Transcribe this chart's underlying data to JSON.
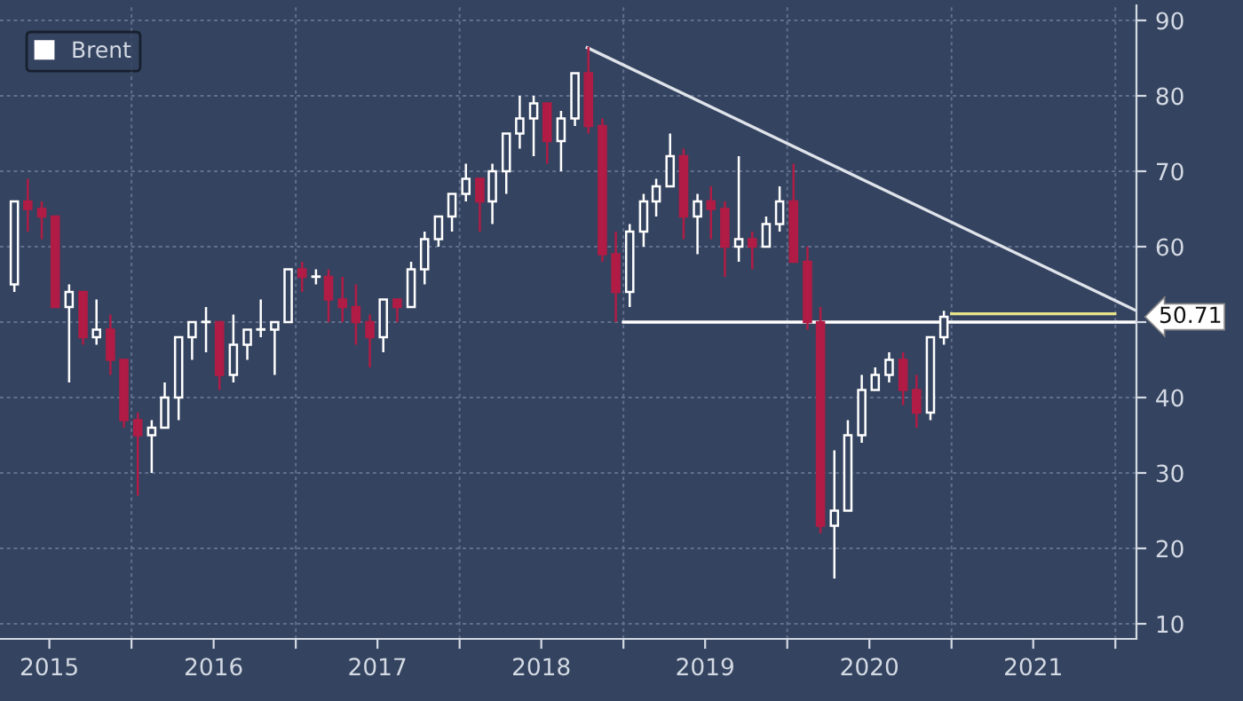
{
  "chart_data": {
    "type": "candlestick",
    "xlim": [
      "2015-03-14",
      "2022-02-17"
    ],
    "xticks": [
      {
        "value": "2015-07-02",
        "label": "2015"
      },
      {
        "value": "2016-01-01",
        "label": null
      },
      {
        "value": "2016-07-02",
        "label": "2016"
      },
      {
        "value": "2017-01-01",
        "label": null
      },
      {
        "value": "2017-07-02",
        "label": "2017"
      },
      {
        "value": "2018-01-01",
        "label": null
      },
      {
        "value": "2018-07-02",
        "label": "2018"
      },
      {
        "value": "2019-01-01",
        "label": null
      },
      {
        "value": "2019-07-02",
        "label": "2019"
      },
      {
        "value": "2020-01-01",
        "label": null
      },
      {
        "value": "2020-07-02",
        "label": "2020"
      },
      {
        "value": "2021-01-01",
        "label": null
      },
      {
        "value": "2021-07-02",
        "label": "2021"
      },
      {
        "value": "2022-01-01",
        "label": null
      }
    ],
    "ylim": [
      8,
      92
    ],
    "yticks": [
      10,
      20,
      30,
      40,
      {
        "value": 50,
        "label": null
      },
      60,
      70,
      80,
      90
    ],
    "grid": true,
    "legend": "top left",
    "annotations": [
      "50.71"
    ],
    "series": [
      {
        "name": "Brent",
        "color": "#ffffff",
        "colors": [
          "#ffffff",
          "#b01c45",
          "#b01c45",
          "#b01c45",
          "#ffffff",
          "#b01c45",
          "#ffffff",
          "#b01c45",
          "#b01c45",
          "#b01c45",
          "#ffffff",
          "#ffffff",
          "#ffffff",
          "#ffffff",
          "#ffffff",
          "#b01c45",
          "#ffffff",
          "#ffffff",
          "#ffffff",
          "#ffffff",
          "#ffffff",
          "#b01c45",
          "#ffffff",
          "#b01c45",
          "#b01c45",
          "#b01c45",
          "#b01c45",
          "#ffffff",
          "#b01c45",
          "#ffffff",
          "#ffffff",
          "#ffffff",
          "#ffffff",
          "#ffffff",
          "#b01c45",
          "#ffffff",
          "#ffffff",
          "#ffffff",
          "#ffffff",
          "#b01c45",
          "#ffffff",
          "#ffffff",
          "#b01c45",
          "#b01c45",
          "#b01c45",
          "#ffffff",
          "#ffffff",
          "#ffffff",
          "#ffffff",
          "#b01c45",
          "#ffffff",
          "#b01c45",
          "#b01c45",
          "#ffffff",
          "#b01c45",
          "#ffffff",
          "#ffffff",
          "#b01c45",
          "#b01c45",
          "#b01c45",
          "#ffffff",
          "#ffffff",
          "#ffffff",
          "#ffffff",
          "#ffffff",
          "#b01c45",
          "#b01c45",
          "#ffffff",
          "#ffffff"
        ],
        "x": [
          "2015-04-15",
          "2015-05-15",
          "2015-06-15",
          "2015-07-15",
          "2015-08-15",
          "2015-09-15",
          "2015-10-15",
          "2015-11-15",
          "2015-12-15",
          "2016-01-15",
          "2016-02-15",
          "2016-03-15",
          "2016-04-15",
          "2016-05-15",
          "2016-06-15",
          "2016-07-15",
          "2016-08-15",
          "2016-09-15",
          "2016-10-15",
          "2016-11-15",
          "2016-12-15",
          "2017-01-15",
          "2017-02-15",
          "2017-03-15",
          "2017-04-15",
          "2017-05-15",
          "2017-06-15",
          "2017-07-15",
          "2017-08-15",
          "2017-09-15",
          "2017-10-15",
          "2017-11-15",
          "2017-12-15",
          "2018-01-15",
          "2018-02-15",
          "2018-03-15",
          "2018-04-15",
          "2018-05-15",
          "2018-06-15",
          "2018-07-15",
          "2018-08-15",
          "2018-09-15",
          "2018-10-15",
          "2018-11-15",
          "2018-12-15",
          "2019-01-15",
          "2019-02-15",
          "2019-03-15",
          "2019-04-15",
          "2019-05-15",
          "2019-06-15",
          "2019-07-15",
          "2019-08-15",
          "2019-09-15",
          "2019-10-15",
          "2019-11-15",
          "2019-12-15",
          "2020-01-15",
          "2020-02-15",
          "2020-03-15",
          "2020-04-15",
          "2020-05-15",
          "2020-06-15",
          "2020-07-15",
          "2020-08-15",
          "2020-09-15",
          "2020-10-15",
          "2020-11-15",
          "2020-12-15"
        ],
        "ohlc": [
          [
            55,
            66,
            54,
            66
          ],
          [
            66,
            69,
            62,
            65
          ],
          [
            65,
            66,
            61,
            64
          ],
          [
            64,
            64,
            52,
            52
          ],
          [
            52,
            55,
            42,
            54
          ],
          [
            54,
            54,
            47,
            48
          ],
          [
            48,
            53,
            47,
            49
          ],
          [
            49,
            51,
            43,
            45
          ],
          [
            45,
            45,
            36,
            37
          ],
          [
            37,
            38,
            27,
            35
          ],
          [
            35,
            37,
            30,
            36
          ],
          [
            36,
            42,
            36,
            40
          ],
          [
            40,
            48,
            37,
            48
          ],
          [
            48,
            50,
            45,
            50
          ],
          [
            50,
            52,
            46,
            50
          ],
          [
            50,
            50,
            41,
            43
          ],
          [
            43,
            51,
            42,
            47
          ],
          [
            47,
            49,
            45,
            49
          ],
          [
            49,
            53,
            48,
            49
          ],
          [
            49,
            50,
            43,
            50
          ],
          [
            50,
            57,
            50,
            57
          ],
          [
            57,
            58,
            54,
            56
          ],
          [
            56,
            57,
            55,
            56
          ],
          [
            56,
            57,
            50,
            53
          ],
          [
            53,
            56,
            50,
            52
          ],
          [
            52,
            55,
            47,
            50
          ],
          [
            50,
            51,
            44,
            48
          ],
          [
            48,
            53,
            46,
            53
          ],
          [
            53,
            53,
            50,
            52
          ],
          [
            52,
            58,
            52,
            57
          ],
          [
            57,
            62,
            55,
            61
          ],
          [
            61,
            64,
            60,
            64
          ],
          [
            64,
            67,
            62,
            67
          ],
          [
            67,
            71,
            66,
            69
          ],
          [
            69,
            69,
            62,
            66
          ],
          [
            66,
            71,
            63,
            70
          ],
          [
            70,
            75,
            67,
            75
          ],
          [
            75,
            80,
            73,
            77
          ],
          [
            77,
            80,
            72,
            79
          ],
          [
            79,
            79,
            71,
            74
          ],
          [
            74,
            78,
            70,
            77
          ],
          [
            77,
            83,
            76,
            83
          ],
          [
            83,
            86.5,
            75,
            76
          ],
          [
            76,
            77,
            58,
            59
          ],
          [
            59,
            62,
            50,
            54
          ],
          [
            54,
            63,
            52,
            62
          ],
          [
            62,
            67,
            60,
            66
          ],
          [
            66,
            69,
            64,
            68
          ],
          [
            68,
            75,
            68,
            72
          ],
          [
            72,
            73,
            61,
            64
          ],
          [
            64,
            67,
            59,
            66
          ],
          [
            66,
            68,
            61,
            65
          ],
          [
            65,
            66,
            56,
            60
          ],
          [
            60,
            72,
            58,
            61
          ],
          [
            61,
            62,
            57,
            60
          ],
          [
            60,
            64,
            60,
            63
          ],
          [
            63,
            68,
            62,
            66
          ],
          [
            66,
            71,
            58,
            58
          ],
          [
            58,
            60,
            49,
            50
          ],
          [
            50,
            52,
            22,
            23
          ],
          [
            23,
            33,
            16,
            25
          ],
          [
            25,
            37,
            25,
            35
          ],
          [
            35,
            43,
            34,
            41
          ],
          [
            41,
            44,
            41,
            43
          ],
          [
            43,
            46,
            42,
            45
          ],
          [
            45,
            46,
            39,
            41
          ],
          [
            41,
            43,
            36,
            38
          ],
          [
            38,
            48,
            37,
            48
          ],
          [
            48,
            51.5,
            47,
            50.71
          ]
        ]
      },
      {
        "type": "line",
        "color": "#dfe3ea",
        "x": [
          "2018-10-12",
          "2022-02-17"
        ],
        "values": [
          86.4,
          51.5
        ]
      },
      {
        "type": "line",
        "color": "#ffffff",
        "x": [
          "2019-01-01",
          "2022-02-17"
        ],
        "values": [
          50,
          50
        ]
      },
      {
        "type": "line",
        "color": "#e8e48a",
        "x": [
          "2021-01-01",
          "2021-12-31"
        ],
        "values": [
          51.1,
          51.1
        ]
      }
    ]
  }
}
